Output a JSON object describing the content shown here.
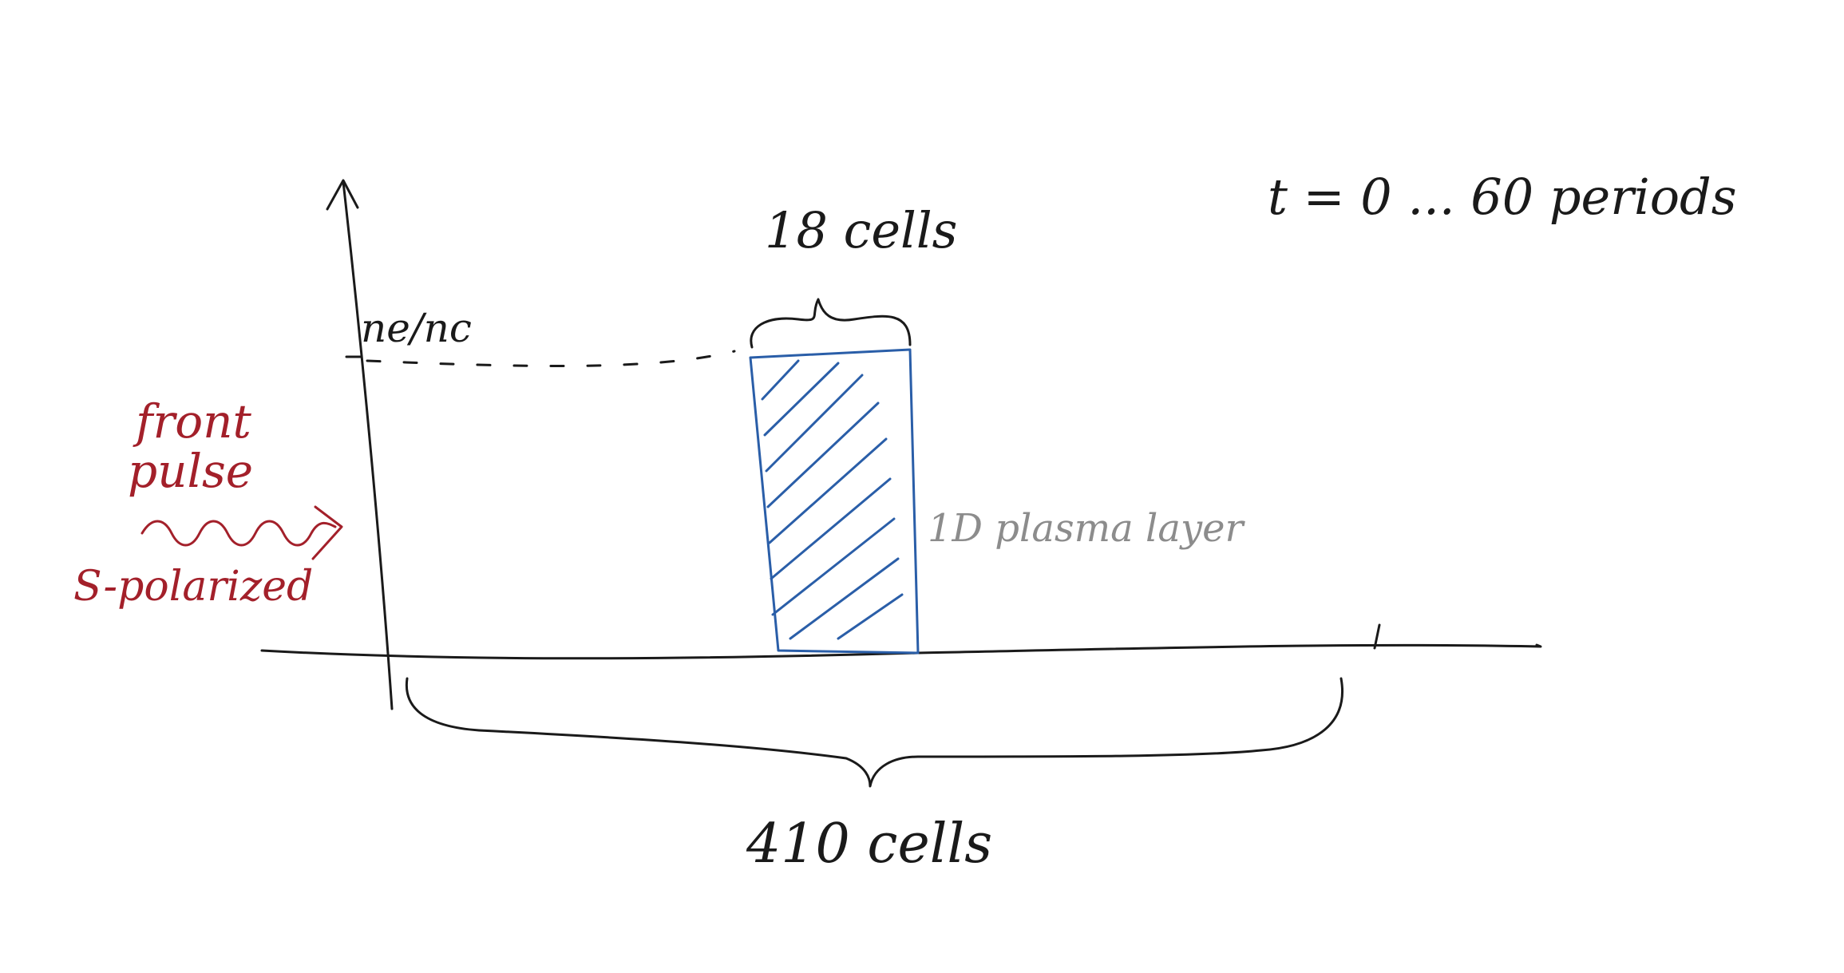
{
  "labels": {
    "ratio": "ne/nc",
    "top_width": "18 cells",
    "layer": "1D plasma layer",
    "bottom_width": "410 cells",
    "time": "t = 0 ... 60 periods",
    "pulse_line1": "front",
    "pulse_line2": "pulse",
    "polarization": "S-polarized"
  },
  "colors": {
    "ink": "#1a1a1a",
    "plasma": "#2a5ea8",
    "pulse": "#a3202a",
    "annotation": "#8c8c8c"
  }
}
